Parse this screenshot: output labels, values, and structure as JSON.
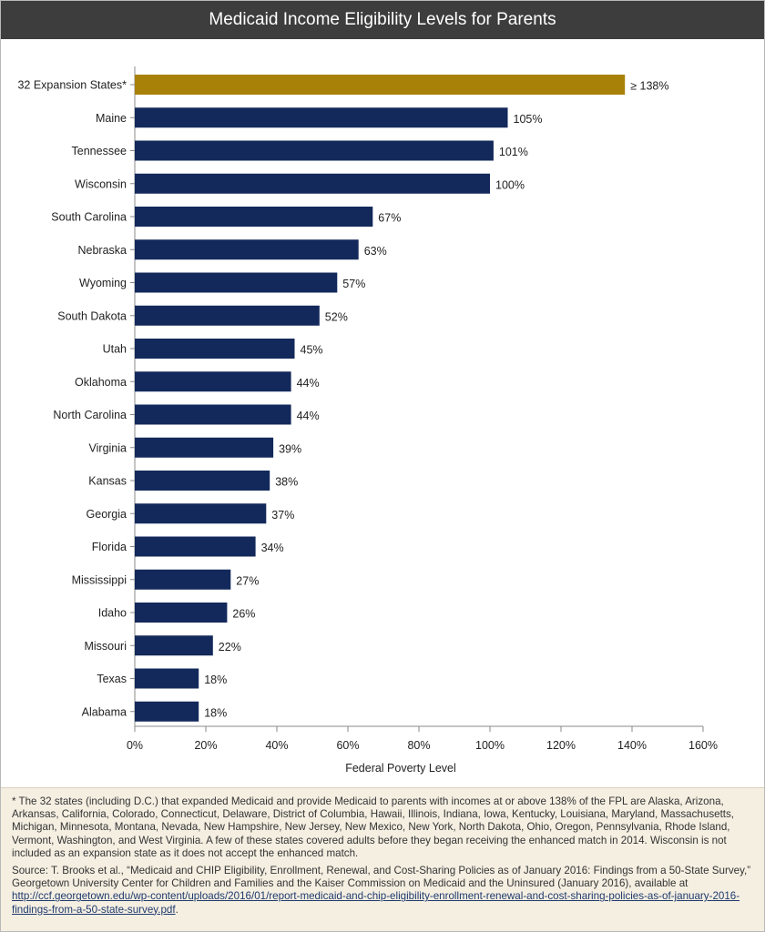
{
  "title": "Medicaid Income Eligibility Levels for Parents",
  "colors": {
    "expansion": "#a88208",
    "state": "#13295b",
    "title_bg": "#3d3d3d",
    "notes_bg": "#f5efe2"
  },
  "chart_data": {
    "type": "bar",
    "orientation": "horizontal",
    "title": "Medicaid Income Eligibility Levels for Parents",
    "xlabel": "Federal Poverty Level",
    "ylabel": "",
    "xlim": [
      0,
      160
    ],
    "xticks": [
      0,
      20,
      40,
      60,
      80,
      100,
      120,
      140,
      160
    ],
    "xtick_labels": [
      "0%",
      "20%",
      "40%",
      "60%",
      "80%",
      "100%",
      "120%",
      "140%",
      "160%"
    ],
    "grid": false,
    "categories": [
      "32 Expansion States*",
      "Maine",
      "Tennessee",
      "Wisconsin",
      "South Carolina",
      "Nebraska",
      "Wyoming",
      "South Dakota",
      "Utah",
      "Oklahoma",
      "North Carolina",
      "Virginia",
      "Kansas",
      "Georgia",
      "Florida",
      "Mississippi",
      "Idaho",
      "Missouri",
      "Texas",
      "Alabama"
    ],
    "values": [
      138,
      105,
      101,
      100,
      67,
      63,
      57,
      52,
      45,
      44,
      44,
      39,
      38,
      37,
      34,
      27,
      26,
      22,
      18,
      18
    ],
    "labels": [
      "≥ 138%",
      "105%",
      "101%",
      "100%",
      "67%",
      "63%",
      "57%",
      "52%",
      "45%",
      "44%",
      "44%",
      "39%",
      "38%",
      "37%",
      "34%",
      "27%",
      "26%",
      "22%",
      "18%",
      "18%"
    ],
    "highlight_index": 0
  },
  "notes": {
    "footnote": "* The 32 states (including D.C.) that expanded Medicaid and provide Medicaid to parents with incomes at or above 138% of the FPL are Alaska, Arizona, Arkansas, California, Colorado, Connecticut, Delaware, District of Columbia, Hawaii, Illinois, Indiana, Iowa, Kentucky, Louisiana, Maryland, Massachusetts, Michigan, Minnesota, Montana, Nevada, New Hampshire, New Jersey, New Mexico, New York, North Dakota, Ohio, Oregon, Pennsylvania, Rhode Island, Vermont, Washington, and West Virginia. A few of these states covered adults before they began receiving the enhanced match in 2014. Wisconsin is not included as an expansion state as it does not accept the enhanced match.",
    "source_text": "Source: T. Brooks et al., “Medicaid and CHIP Eligibility, Enrollment, Renewal, and Cost-Sharing Policies as of January 2016: Findings from a 50-State Survey,” Georgetown University Center for Children and Families and the Kaiser Commission on Medicaid and the Uninsured (January 2016), available at",
    "source_link": "http://ccf.georgetown.edu/wp-content/uploads/2016/01/report-medicaid-and-chip-eligibility-enrollment-renewal-and-cost-sharing-policies-as-of-january-2016-findings-from-a-50-state-survey.pdf",
    "source_end": "."
  }
}
